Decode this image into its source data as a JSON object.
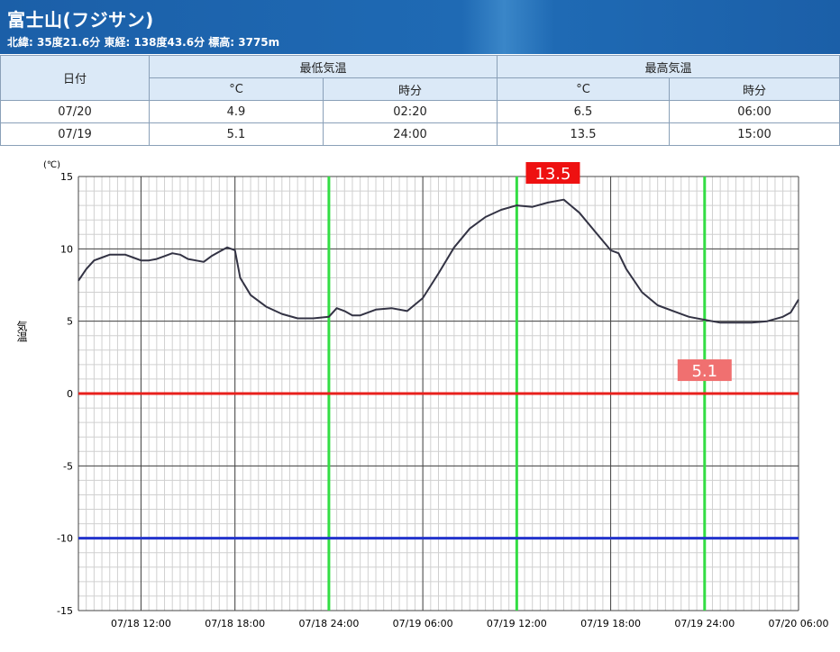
{
  "header": {
    "title": "富士山(フジサン)",
    "subtitle": "北緯: 35度21.6分 東経: 138度43.6分 標高: 3775m"
  },
  "table": {
    "col_date": "日付",
    "group_min": "最低気温",
    "group_max": "最高気温",
    "unit_c": "°C",
    "unit_time": "時分",
    "rows": [
      {
        "date": "07/20",
        "min_c": "4.9",
        "min_time": "02:20",
        "max_c": "6.5",
        "max_time": "06:00"
      },
      {
        "date": "07/19",
        "min_c": "5.1",
        "min_time": "24:00",
        "max_c": "13.5",
        "max_time": "15:00"
      }
    ]
  },
  "chart_data": {
    "type": "line",
    "unit_label": "(℃)",
    "ylabel": "気温",
    "ylim": [
      -15,
      15
    ],
    "yticks": [
      15,
      10,
      5,
      0,
      -5,
      -10,
      -15
    ],
    "xlim": [
      "07/18 08:00",
      "07/20 06:00"
    ],
    "xticks": [
      "07/18 12:00",
      "07/18 18:00",
      "07/18 24:00",
      "07/19 06:00",
      "07/19 12:00",
      "07/19 18:00",
      "07/19 24:00",
      "07/20 06:00"
    ],
    "grid": true,
    "reference_lines": [
      {
        "y": 0,
        "color": "#e8201c"
      },
      {
        "y": -10,
        "color": "#2233cc"
      }
    ],
    "marker_lines": [
      "07/18 24:00",
      "07/19 12:00",
      "07/19 24:00"
    ],
    "marker_color": "#33dd44",
    "annotations": [
      {
        "text": "13.5",
        "x": "07/19 15:00",
        "y": 13.5,
        "color": "#ee1111"
      },
      {
        "text": "5.1",
        "x": "07/19 24:00",
        "y": 5.1,
        "color": "#f07070"
      }
    ],
    "series": [
      {
        "color": "#333344",
        "x": [
          "07/18 08:00",
          "07/18 08:30",
          "07/18 09:00",
          "07/18 09:30",
          "07/18 10:00",
          "07/18 10:30",
          "07/18 11:00",
          "07/18 11:30",
          "07/18 12:00",
          "07/18 12:30",
          "07/18 13:00",
          "07/18 13:30",
          "07/18 14:00",
          "07/18 14:30",
          "07/18 15:00",
          "07/18 15:30",
          "07/18 16:00",
          "07/18 16:30",
          "07/18 17:00",
          "07/18 17:30",
          "07/18 18:00",
          "07/18 18:20",
          "07/18 19:00",
          "07/18 20:00",
          "07/18 21:00",
          "07/18 22:00",
          "07/18 23:00",
          "07/18 24:00",
          "07/19 00:30",
          "07/19 01:00",
          "07/19 01:30",
          "07/19 02:00",
          "07/19 03:00",
          "07/19 04:00",
          "07/19 05:00",
          "07/19 06:00",
          "07/19 07:00",
          "07/19 08:00",
          "07/19 09:00",
          "07/19 10:00",
          "07/19 11:00",
          "07/19 12:00",
          "07/19 13:00",
          "07/19 14:00",
          "07/19 15:00",
          "07/19 16:00",
          "07/19 17:00",
          "07/19 18:00",
          "07/19 18:30",
          "07/19 19:00",
          "07/19 20:00",
          "07/19 21:00",
          "07/19 22:00",
          "07/19 23:00",
          "07/19 24:00",
          "07/20 01:00",
          "07/20 02:00",
          "07/20 03:00",
          "07/20 04:00",
          "07/20 05:00",
          "07/20 05:30",
          "07/20 06:00"
        ],
        "y": [
          7.8,
          8.6,
          9.2,
          9.4,
          9.6,
          9.6,
          9.6,
          9.4,
          9.2,
          9.2,
          9.3,
          9.5,
          9.7,
          9.6,
          9.3,
          9.2,
          9.1,
          9.5,
          9.8,
          10.1,
          9.9,
          8.0,
          6.8,
          6.0,
          5.5,
          5.2,
          5.2,
          5.3,
          5.9,
          5.7,
          5.4,
          5.4,
          5.8,
          5.9,
          5.7,
          6.6,
          8.3,
          10.1,
          11.4,
          12.2,
          12.7,
          13.0,
          12.9,
          13.2,
          13.4,
          12.5,
          11.2,
          9.9,
          9.7,
          8.6,
          7.0,
          6.1,
          5.7,
          5.3,
          5.1,
          4.9,
          4.9,
          4.9,
          5.0,
          5.3,
          5.6,
          6.5
        ]
      }
    ]
  }
}
